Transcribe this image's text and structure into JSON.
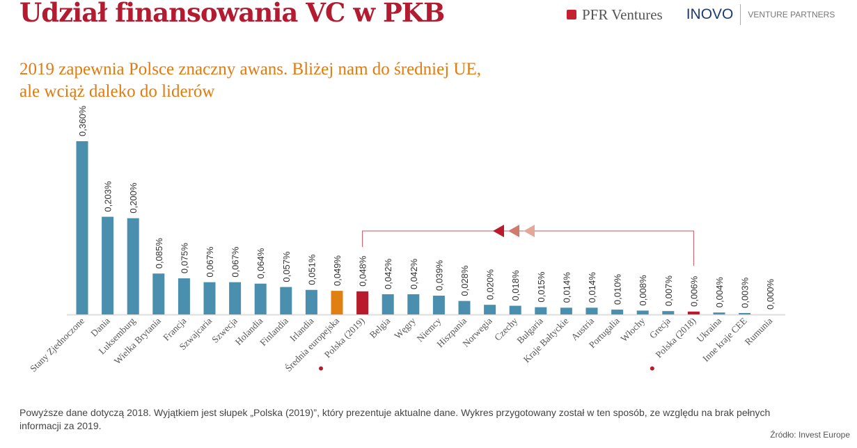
{
  "header": {
    "title": "Udział finansowania VC w PKB",
    "subtitle_line1": "2019 zapewnia Polsce znaczny awans. Bliżej nam do średniej UE,",
    "subtitle_line2": "ale wciąż daleko do liderów"
  },
  "logos": {
    "pfr": "PFR Ventures",
    "inovo": "INOVO",
    "inovo_sub": "VENTURE PARTNERS"
  },
  "colors": {
    "bar": "#4a8fae",
    "eu_average": "#e07f12",
    "poland": "#b81c2c",
    "title": "#b31b30",
    "subtitle": "#e07b12"
  },
  "chart_data": {
    "type": "bar",
    "ylabel": "",
    "xlabel": "",
    "ylim": [
      0,
      0.36
    ],
    "unit": "%",
    "grid": false,
    "categories": [
      "Stany Zjednoczone",
      "Dania",
      "Luksemburg",
      "Wielka Brytania",
      "Francja",
      "Szwajcaria",
      "Szwecja",
      "Holandia",
      "Finlandia",
      "Irlandia",
      "Średnia europejska",
      "Polska (2019)",
      "Belgia",
      "Węgry",
      "Niemcy",
      "Hiszpania",
      "Norwegia",
      "Czechy",
      "Bułgaria",
      "Kraje Bałtyckie",
      "Austria",
      "Portugalia",
      "Włochy",
      "Grecja",
      "Polska (2018)",
      "Ukraina",
      "Inne kraje CEE",
      "Rumunia"
    ],
    "values": [
      0.36,
      0.203,
      0.2,
      0.085,
      0.075,
      0.067,
      0.067,
      0.064,
      0.057,
      0.051,
      0.049,
      0.048,
      0.042,
      0.042,
      0.039,
      0.028,
      0.02,
      0.018,
      0.015,
      0.014,
      0.014,
      0.01,
      0.008,
      0.007,
      0.006,
      0.004,
      0.003,
      0.0
    ],
    "data_labels": [
      "0,360%",
      "0,203%",
      "0,200%",
      "0,085%",
      "0,075%",
      "0,067%",
      "0,067%",
      "0,064%",
      "0,057%",
      "0,051%",
      "0,049%",
      "0,048%",
      "0,042%",
      "0,042%",
      "0,039%",
      "0,028%",
      "0,020%",
      "0,018%",
      "0,015%",
      "0,014%",
      "0,014%",
      "0,010%",
      "0,008%",
      "0,007%",
      "0,006%",
      "0,004%",
      "0,003%",
      "0,000%"
    ],
    "highlight": {
      "Średnia europejska": "eu_average",
      "Polska (2019)": "poland",
      "Polska (2018)": "poland"
    },
    "annotation": "arrow from Polska (2018) to Polska (2019)"
  },
  "footnote": "Powyższe dane dotyczą 2018. Wyjątkiem jest słupek „Polska (2019)”, który prezentuje aktualne dane. Wykres przygotowany został w ten sposób, ze względu na brak pełnych informacji za 2019.",
  "source": "Źródło: Invest Europe"
}
